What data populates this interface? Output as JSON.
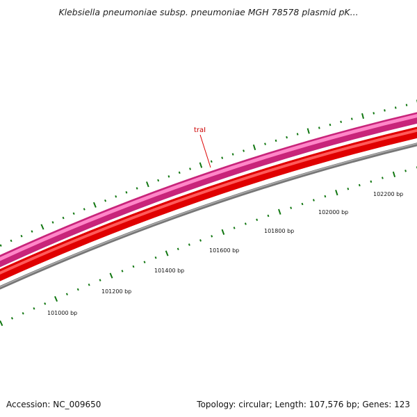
{
  "title": "Klebsiella pneumoniae subsp. pneumoniae MGH 78578 plasmid pK...",
  "footer": {
    "accession": "Accession: NC_009650",
    "summary": "Topology: circular; Length: 107,576 bp; Genes: 123"
  },
  "feature": {
    "label": "traI"
  },
  "ruler_labels": [
    "101000 bp",
    "101200 bp",
    "101400 bp",
    "101600 bp",
    "101800 bp",
    "102000 bp",
    "102200 bp"
  ],
  "colors": {
    "gene_forward": "#e8338f",
    "gene_reverse": "#ee0000",
    "backbone": "#7f7f7f",
    "ticks": "#117711",
    "feature_label": "#cc0000"
  }
}
